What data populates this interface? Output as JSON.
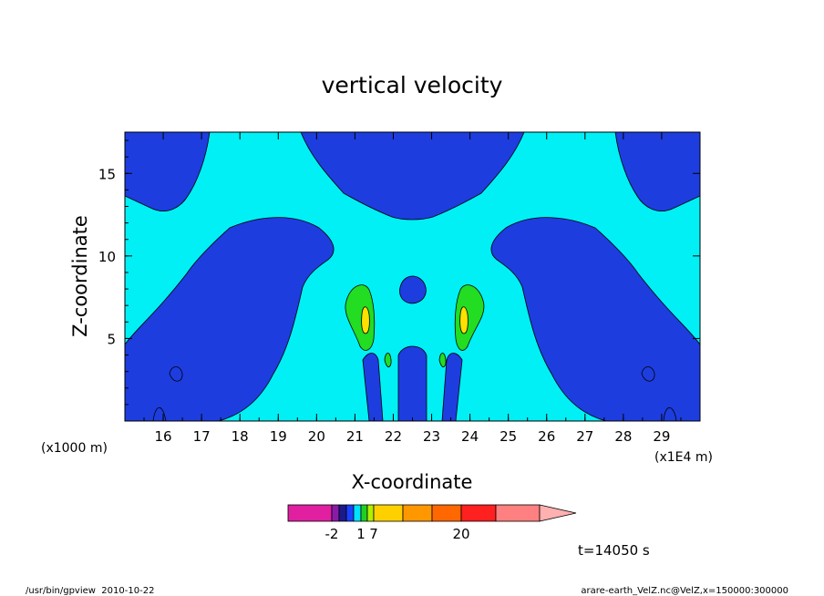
{
  "chart_data": {
    "type": "heatmap",
    "title": "vertical velocity",
    "xlabel": "X-coordinate",
    "ylabel": "Z-coordinate",
    "x_unit_left": "(x1000 m)",
    "x_unit_right": "(x1E4 m)",
    "xlim": [
      15,
      30
    ],
    "ylim": [
      0,
      17.5
    ],
    "x_ticks": [
      16,
      17,
      18,
      19,
      20,
      21,
      22,
      23,
      24,
      25,
      26,
      27,
      28,
      29
    ],
    "y_ticks": [
      5,
      10,
      15
    ],
    "colorbar": {
      "labels": [
        {
          "text": "-2",
          "value": -2
        },
        {
          "text": "1",
          "value": 1
        },
        {
          "text": "7",
          "value": 7
        },
        {
          "text": "20",
          "value": 20
        }
      ],
      "colors": [
        "#e020a0",
        "#8a1aa8",
        "#1a1a8a",
        "#1a40ff",
        "#00e0ff",
        "#20d020",
        "#b0f000",
        "#ffd000",
        "#ff9800",
        "#ff6800",
        "#ff2020",
        "#ff8080",
        "#ffb0b0"
      ]
    },
    "contour_levels": [
      {
        "name": "blue",
        "color": "#1d3ddf"
      },
      {
        "name": "cyan",
        "color": "#00f0f5"
      },
      {
        "name": "green",
        "color": "#22dd22"
      },
      {
        "name": "yellow",
        "color": "#ffe000"
      }
    ],
    "time_label": "t=14050 s"
  },
  "footer": {
    "left": "/usr/bin/gpview  2010-10-22",
    "right": "arare-earth_VelZ.nc@VelZ,x=150000:300000"
  }
}
